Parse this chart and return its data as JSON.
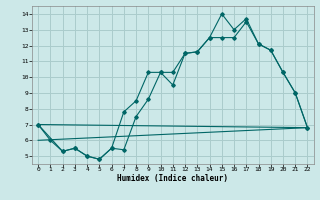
{
  "xlabel": "Humidex (Indice chaleur)",
  "bg_color": "#cce8e8",
  "grid_color": "#aacccc",
  "line_color": "#006666",
  "xlim": [
    -0.5,
    22.5
  ],
  "ylim": [
    4.5,
    14.5
  ],
  "yticks": [
    5,
    6,
    7,
    8,
    9,
    10,
    11,
    12,
    13,
    14
  ],
  "xticks": [
    0,
    1,
    2,
    3,
    4,
    5,
    6,
    7,
    8,
    9,
    10,
    11,
    12,
    13,
    14,
    15,
    16,
    17,
    18,
    19,
    20,
    21,
    22
  ],
  "line1_x": [
    0,
    1,
    2,
    3,
    4,
    5,
    6,
    7,
    8,
    9,
    10,
    11,
    12,
    13,
    14,
    15,
    16,
    17,
    18,
    19,
    20,
    21,
    22
  ],
  "line1_y": [
    7.0,
    6.0,
    5.3,
    5.5,
    5.0,
    4.8,
    5.5,
    5.4,
    7.5,
    8.6,
    10.3,
    9.5,
    11.5,
    11.6,
    12.5,
    14.0,
    13.0,
    13.7,
    12.1,
    11.7,
    10.3,
    9.0,
    6.8
  ],
  "line2_x": [
    0,
    2,
    3,
    4,
    5,
    6,
    7,
    8,
    9,
    10,
    11,
    12,
    13,
    14,
    15,
    16,
    17,
    18,
    19,
    20,
    21,
    22
  ],
  "line2_y": [
    7.0,
    5.3,
    5.5,
    5.0,
    4.8,
    5.5,
    7.8,
    8.5,
    10.3,
    10.3,
    10.3,
    11.5,
    11.6,
    12.5,
    12.5,
    12.5,
    13.5,
    12.1,
    11.7,
    10.3,
    9.0,
    6.8
  ],
  "line3_x": [
    0,
    22
  ],
  "line3_y": [
    7.0,
    6.8
  ],
  "line4_x": [
    0,
    22
  ],
  "line4_y": [
    6.0,
    6.8
  ]
}
